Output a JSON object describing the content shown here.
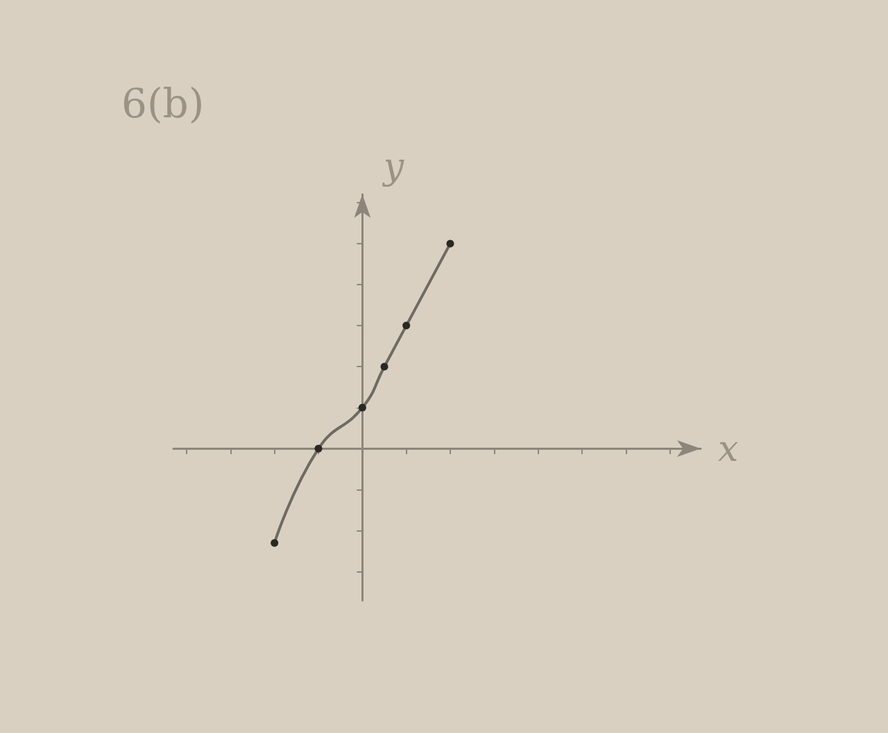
{
  "chart_data": {
    "type": "line",
    "title": "6(b)",
    "x_label": "x",
    "y_label": "y",
    "x": [
      -2,
      -1,
      0,
      0.5,
      1,
      2
    ],
    "values": [
      -2.3,
      0,
      1,
      2,
      3,
      5
    ],
    "xlim": [
      -4.3,
      7.7
    ],
    "ylim": [
      -3.7,
      6.2
    ],
    "xticks": [
      -4,
      -3,
      -2,
      -1,
      0,
      1,
      2,
      3,
      4,
      5,
      6,
      7
    ],
    "yticks": [
      -3,
      -2,
      -1,
      0,
      1,
      2,
      3,
      4,
      5,
      6
    ],
    "tick_labels": false,
    "grid": false,
    "color": "#6f6a61",
    "marker": "circle",
    "line_style": "solid"
  }
}
